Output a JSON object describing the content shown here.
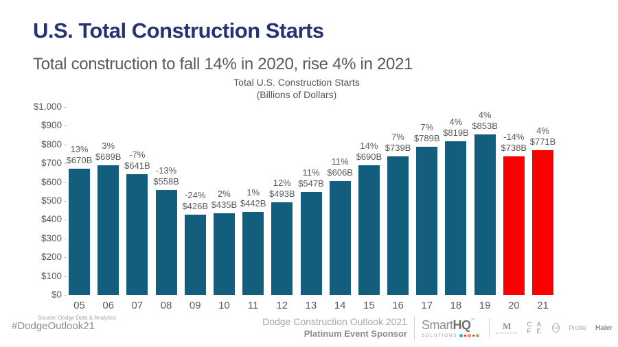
{
  "page": {
    "title": "U.S. Total Construction Starts",
    "subtitle": "Total construction to fall 14% in 2020, rise 4% in 2021"
  },
  "chart_data": {
    "type": "bar",
    "title": "Total U.S. Construction Starts",
    "subtitle": "(Billions of Dollars)",
    "categories": [
      "05",
      "06",
      "07",
      "08",
      "09",
      "10",
      "11",
      "12",
      "13",
      "14",
      "15",
      "16",
      "17",
      "18",
      "19",
      "20",
      "21"
    ],
    "values": [
      670,
      689,
      641,
      558,
      426,
      435,
      442,
      493,
      547,
      606,
      690,
      739,
      789,
      819,
      853,
      738,
      771
    ],
    "pct_labels": [
      "13%",
      "3%",
      "-7%",
      "-13%",
      "-24%",
      "2%",
      "1%",
      "12%",
      "11%",
      "11%",
      "14%",
      "7%",
      "7%",
      "4%",
      "4%",
      "-14%",
      "4%"
    ],
    "value_labels": [
      "$670B",
      "$689B",
      "$641B",
      "$558B",
      "$426B",
      "$435B",
      "$442B",
      "$493B",
      "$547B",
      "$606B",
      "$690B",
      "$739B",
      "$789B",
      "$819B",
      "$853B",
      "$738B",
      "$771B"
    ],
    "highlight_years": [
      "20",
      "21"
    ],
    "y_ticks": [
      "$1,000",
      "$900",
      "$800",
      "$700",
      "$600",
      "$500",
      "$400",
      "$300",
      "$200",
      "$100",
      "$0"
    ],
    "ylim": [
      0,
      1000
    ],
    "grid": false,
    "legend": "none",
    "colors": {
      "bar": "#145E7D",
      "highlight": "#FB0000"
    }
  },
  "footer": {
    "source": "Source: Dodge Data & Analytics",
    "hashtag": "#DodgeOutlook21",
    "event_line1": "Dodge Construction Outlook 2021",
    "event_line2": "Platinum Event Sponsor",
    "sponsor": {
      "smart": "Smart",
      "hq": "HQ",
      "tm": "™",
      "solutions": "SOLUTIONS",
      "dot_colors": [
        "#29ABE2",
        "#EC008C",
        "#F7941D",
        "#ED1C24",
        "#8DC63F"
      ],
      "brands": {
        "monogram_m": "M",
        "monogram_sub": "MONOGRAM",
        "cafe": "C A F É",
        "ge": "GE",
        "profile": "Profile",
        "haier": "Haier"
      }
    }
  }
}
